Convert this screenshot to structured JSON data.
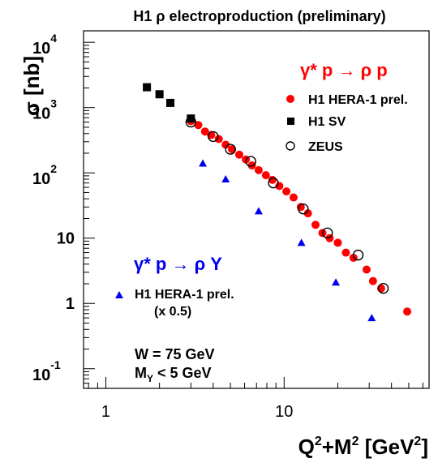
{
  "chart_data": {
    "type": "scatter",
    "title": "H1 ρ electroproduction (preliminary)",
    "xlabel": {
      "main": "Q",
      "sup1": "2",
      "mid": "+M",
      "sup2": "2",
      "unit_pre": " [GeV",
      "unit_sup": "2",
      "unit_post": "]"
    },
    "ylabel": "σ [nb]",
    "x_scale": "log",
    "y_scale": "log",
    "xlim": [
      0.75,
      65
    ],
    "ylim": [
      0.05,
      15000
    ],
    "x_ticks": [
      {
        "value": 1,
        "label": "1"
      },
      {
        "value": 10,
        "label": "10"
      }
    ],
    "y_ticks": [
      {
        "value": 10000,
        "base": "10",
        "exp": "4"
      },
      {
        "value": 1000,
        "base": "10",
        "exp": "3"
      },
      {
        "value": 100,
        "base": "10",
        "exp": "2"
      },
      {
        "value": 10,
        "base": "10",
        "exp": ""
      },
      {
        "value": 1,
        "base": "1",
        "exp": ""
      },
      {
        "value": 0.1,
        "base": "10",
        "exp": "-1"
      }
    ],
    "groups": [
      {
        "heading": "γ* p → ρ p",
        "color": "#ff0000",
        "series": [
          {
            "name": "H1 HERA-1 prel.",
            "marker": "filled-circle",
            "color": "#ff0000",
            "points": [
              [
                3.0,
                620
              ],
              [
                3.3,
                540
              ],
              [
                3.6,
                430
              ],
              [
                3.9,
                380
              ],
              [
                4.3,
                330
              ],
              [
                4.7,
                270
              ],
              [
                5.1,
                230
              ],
              [
                5.6,
                190
              ],
              [
                6.1,
                160
              ],
              [
                6.6,
                130
              ],
              [
                7.2,
                110
              ],
              [
                7.9,
                92
              ],
              [
                8.6,
                78
              ],
              [
                9.4,
                63
              ],
              [
                10.3,
                52
              ],
              [
                11.3,
                42
              ],
              [
                12.4,
                30
              ],
              [
                13.6,
                24
              ],
              [
                15.0,
                16
              ],
              [
                16.4,
                12
              ],
              [
                18.0,
                10
              ],
              [
                20.0,
                8.5
              ],
              [
                22.2,
                6.0
              ],
              [
                24.5,
                5.0
              ],
              [
                29.0,
                3.3
              ],
              [
                31.5,
                2.2
              ],
              [
                35.0,
                1.7
              ],
              [
                49.0,
                0.75
              ]
            ]
          },
          {
            "name": "H1 SV",
            "marker": "filled-square",
            "color": "#000000",
            "points": [
              [
                1.7,
                2050
              ],
              [
                2.0,
                1600
              ],
              [
                2.3,
                1180
              ],
              [
                3.0,
                680
              ]
            ]
          },
          {
            "name": "ZEUS",
            "marker": "open-circle",
            "color": "#000000",
            "points": [
              [
                3.0,
                600
              ],
              [
                4.0,
                360
              ],
              [
                5.0,
                230
              ],
              [
                6.5,
                150
              ],
              [
                8.7,
                70
              ],
              [
                12.8,
                28
              ],
              [
                17.5,
                12
              ],
              [
                26.0,
                5.5
              ],
              [
                36.0,
                1.7
              ]
            ]
          }
        ]
      },
      {
        "heading": "γ* p → ρ Y",
        "color": "#0000ee",
        "note": "(x 0.5)",
        "series": [
          {
            "name": "H1 HERA-1 prel.",
            "marker": "filled-triangle",
            "color": "#0000ee",
            "points": [
              [
                3.5,
                140
              ],
              [
                4.7,
                80
              ],
              [
                7.2,
                26
              ],
              [
                12.5,
                8.5
              ],
              [
                19.5,
                2.1
              ],
              [
                31.0,
                0.6
              ]
            ]
          }
        ]
      }
    ],
    "annotations": [
      {
        "id": "w",
        "text": "W = 75 GeV"
      },
      {
        "id": "my",
        "pre": "M",
        "sub": "Y",
        "post": " < 5 GeV"
      }
    ]
  }
}
